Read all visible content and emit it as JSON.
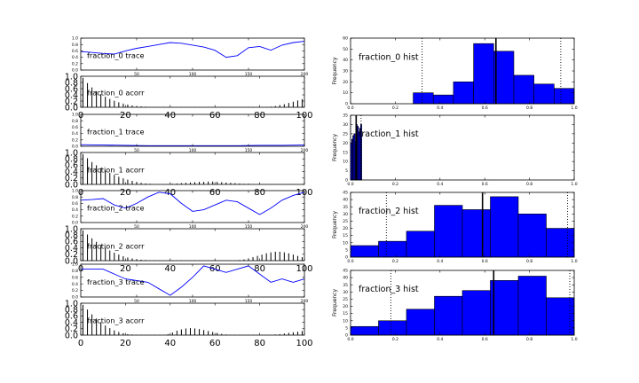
{
  "chart_data": [
    {
      "type": "line",
      "title": "fraction_0 trace",
      "xlim": [
        0,
        200
      ],
      "ylim": [
        0,
        1.0
      ],
      "xticks": [
        "50",
        "100",
        "150",
        "200"
      ],
      "yticks": [
        "1.0",
        "0.8",
        "0.6",
        "0.4",
        "0.2",
        "0.0"
      ],
      "color": "#0000ff",
      "x": [
        0,
        10,
        20,
        30,
        40,
        50,
        60,
        70,
        80,
        90,
        100,
        110,
        120,
        130,
        140,
        150,
        160,
        170,
        180,
        190,
        200
      ],
      "y": [
        0.58,
        0.55,
        0.52,
        0.5,
        0.6,
        0.68,
        0.74,
        0.8,
        0.86,
        0.84,
        0.78,
        0.72,
        0.62,
        0.4,
        0.45,
        0.7,
        0.74,
        0.62,
        0.78,
        0.86,
        0.9
      ]
    },
    {
      "type": "bar",
      "title": "fraction_0 acorr",
      "xlim": [
        0,
        100
      ],
      "ylim": [
        0,
        1.0
      ],
      "xticks": [
        "0",
        "20",
        "40",
        "60",
        "80",
        "100"
      ],
      "yticks": [
        "1.0",
        "0.8",
        "0.6",
        "0.4",
        "0.2",
        "0.0"
      ],
      "color": "#000000",
      "x": [
        1,
        3,
        5,
        7,
        9,
        11,
        13,
        15,
        17,
        19,
        21,
        23,
        25,
        27,
        29,
        31,
        33,
        35,
        37,
        39,
        41,
        43,
        45,
        47,
        49,
        51,
        53,
        55,
        57,
        59,
        61,
        63,
        65,
        67,
        69,
        71,
        73,
        75,
        77,
        79,
        81,
        83,
        85,
        87,
        89,
        91,
        93,
        95,
        97,
        99
      ],
      "values": [
        0.95,
        0.78,
        0.64,
        0.52,
        0.42,
        0.34,
        0.27,
        0.21,
        0.16,
        0.12,
        0.09,
        0.06,
        0.04,
        0.03,
        0.02,
        0.01,
        0.01,
        0.01,
        0.01,
        0.01,
        0.01,
        0.01,
        0.01,
        0.01,
        0.01,
        0.01,
        0.01,
        0.01,
        0.01,
        0.01,
        0.01,
        0.01,
        0.01,
        0.01,
        0.01,
        0.01,
        0.01,
        0.01,
        0.01,
        0.01,
        0.01,
        0.01,
        0.02,
        0.04,
        0.07,
        0.1,
        0.14,
        0.18,
        0.22,
        0.26
      ]
    },
    {
      "type": "line",
      "title": "fraction_1 trace",
      "xlim": [
        0,
        200
      ],
      "ylim": [
        0,
        1.0
      ],
      "xticks": [
        "50",
        "100",
        "150",
        "200"
      ],
      "yticks": [
        "1.0",
        "0.8",
        "0.6",
        "0.4",
        "0.2",
        "0.0"
      ],
      "color": "#0000ff",
      "x": [
        0,
        20,
        40,
        60,
        80,
        100,
        120,
        140,
        160,
        180,
        200
      ],
      "y": [
        0.05,
        0.04,
        0.03,
        0.02,
        0.02,
        0.02,
        0.02,
        0.02,
        0.03,
        0.03,
        0.04
      ]
    },
    {
      "type": "bar",
      "title": "fraction_1 acorr",
      "xlim": [
        0,
        100
      ],
      "ylim": [
        0,
        1.0
      ],
      "xticks": [
        "0",
        "20",
        "40",
        "60",
        "80",
        "100"
      ],
      "yticks": [
        "1.0",
        "0.8",
        "0.6",
        "0.4",
        "0.2",
        "0.0"
      ],
      "color": "#000000",
      "x": [
        1,
        3,
        5,
        7,
        9,
        11,
        13,
        15,
        17,
        19,
        21,
        23,
        25,
        27,
        29,
        31,
        33,
        35,
        37,
        39,
        41,
        43,
        45,
        47,
        49,
        51,
        53,
        55,
        57,
        59,
        61,
        63,
        65,
        67,
        69,
        71,
        73,
        75,
        77,
        79,
        81,
        83,
        85,
        87,
        89,
        91,
        93,
        95,
        97,
        99
      ],
      "values": [
        0.95,
        0.82,
        0.7,
        0.6,
        0.51,
        0.43,
        0.36,
        0.3,
        0.24,
        0.19,
        0.15,
        0.11,
        0.08,
        0.05,
        0.03,
        0.02,
        0.01,
        0.01,
        0.01,
        0.01,
        0.02,
        0.03,
        0.04,
        0.05,
        0.06,
        0.07,
        0.08,
        0.08,
        0.09,
        0.09,
        0.08,
        0.07,
        0.06,
        0.05,
        0.04,
        0.03,
        0.02,
        0.02,
        0.01,
        0.01,
        0.01,
        0.01,
        0.01,
        0.01,
        0.01,
        0.01,
        0.01,
        0.01,
        0.01,
        0.01
      ]
    },
    {
      "type": "line",
      "title": "fraction_2 trace",
      "xlim": [
        0,
        200
      ],
      "ylim": [
        0,
        1.0
      ],
      "xticks": [
        "50",
        "100",
        "150",
        "200"
      ],
      "yticks": [
        "1.0",
        "0.8",
        "0.6",
        "0.4",
        "0.2",
        "0.0"
      ],
      "color": "#0000ff",
      "x": [
        0,
        10,
        20,
        30,
        40,
        50,
        60,
        70,
        80,
        90,
        100,
        110,
        120,
        130,
        140,
        150,
        160,
        170,
        180,
        190,
        200
      ],
      "y": [
        0.7,
        0.72,
        0.75,
        0.55,
        0.45,
        0.6,
        0.8,
        0.95,
        0.9,
        0.6,
        0.35,
        0.4,
        0.55,
        0.7,
        0.65,
        0.45,
        0.25,
        0.45,
        0.7,
        0.85,
        0.95
      ]
    },
    {
      "type": "bar",
      "title": "fraction_2 acorr",
      "xlim": [
        0,
        100
      ],
      "ylim": [
        0,
        1.0
      ],
      "xticks": [
        "0",
        "20",
        "40",
        "60",
        "80",
        "100"
      ],
      "yticks": [
        "1.0",
        "0.8",
        "0.6",
        "0.4",
        "0.2",
        "0.0"
      ],
      "color": "#000000",
      "x": [
        1,
        3,
        5,
        7,
        9,
        11,
        13,
        15,
        17,
        19,
        21,
        23,
        25,
        27,
        29,
        31,
        33,
        35,
        37,
        39,
        41,
        43,
        45,
        47,
        49,
        51,
        53,
        55,
        57,
        59,
        61,
        63,
        65,
        67,
        69,
        71,
        73,
        75,
        77,
        79,
        81,
        83,
        85,
        87,
        89,
        91,
        93,
        95,
        97,
        99
      ],
      "values": [
        0.95,
        0.82,
        0.7,
        0.59,
        0.49,
        0.4,
        0.32,
        0.25,
        0.19,
        0.14,
        0.1,
        0.07,
        0.05,
        0.03,
        0.02,
        0.01,
        0.01,
        0.01,
        0.01,
        0.01,
        0.01,
        0.01,
        0.01,
        0.01,
        0.01,
        0.01,
        0.01,
        0.01,
        0.01,
        0.01,
        0.01,
        0.01,
        0.01,
        0.01,
        0.01,
        0.02,
        0.04,
        0.07,
        0.11,
        0.15,
        0.19,
        0.23,
        0.26,
        0.28,
        0.28,
        0.26,
        0.23,
        0.19,
        0.15,
        0.11
      ]
    },
    {
      "type": "line",
      "title": "fraction_3 trace",
      "xlim": [
        0,
        200
      ],
      "ylim": [
        0,
        1.0
      ],
      "xticks": [
        "50",
        "100",
        "150",
        "200"
      ],
      "yticks": [
        "1.0",
        "0.8",
        "0.6",
        "0.4",
        "0.2",
        "0.0"
      ],
      "color": "#0000ff",
      "x": [
        0,
        10,
        20,
        30,
        40,
        50,
        60,
        70,
        80,
        90,
        100,
        110,
        120,
        130,
        140,
        150,
        160,
        170,
        180,
        190,
        200
      ],
      "y": [
        0.85,
        0.85,
        0.85,
        0.7,
        0.55,
        0.5,
        0.45,
        0.25,
        0.05,
        0.3,
        0.6,
        0.95,
        0.85,
        0.75,
        0.85,
        0.95,
        0.7,
        0.45,
        0.55,
        0.45,
        0.55
      ]
    },
    {
      "type": "bar",
      "title": "fraction_3 acorr",
      "xlim": [
        0,
        100
      ],
      "ylim": [
        0,
        1.0
      ],
      "xticks": [
        "0",
        "20",
        "40",
        "60",
        "80",
        "100"
      ],
      "yticks": [
        "1.0",
        "0.8",
        "0.6",
        "0.4",
        "0.2",
        "0.0"
      ],
      "color": "#000000",
      "x": [
        1,
        3,
        5,
        7,
        9,
        11,
        13,
        15,
        17,
        19,
        21,
        23,
        25,
        27,
        29,
        31,
        33,
        35,
        37,
        39,
        41,
        43,
        45,
        47,
        49,
        51,
        53,
        55,
        57,
        59,
        61,
        63,
        65,
        67,
        69,
        71,
        73,
        75,
        77,
        79,
        81,
        83,
        85,
        87,
        89,
        91,
        93,
        95,
        97,
        99
      ],
      "values": [
        0.95,
        0.8,
        0.65,
        0.52,
        0.4,
        0.3,
        0.22,
        0.15,
        0.1,
        0.06,
        0.03,
        0.02,
        0.01,
        0.01,
        0.01,
        0.01,
        0.01,
        0.01,
        0.01,
        0.03,
        0.08,
        0.14,
        0.18,
        0.21,
        0.22,
        0.21,
        0.19,
        0.16,
        0.13,
        0.1,
        0.07,
        0.04,
        0.02,
        0.01,
        0.01,
        0.01,
        0.01,
        0.01,
        0.01,
        0.01,
        0.01,
        0.01,
        0.01,
        0.02,
        0.03,
        0.05,
        0.07,
        0.09,
        0.11,
        0.13
      ]
    },
    {
      "type": "histogram",
      "title": "fraction_0 hist",
      "ylabel": "Frequency",
      "xlim": [
        0,
        1.0
      ],
      "ylim": [
        0,
        60
      ],
      "xticks": [
        "0.0",
        "0.2",
        "0.4",
        "0.6",
        "0.8",
        "1.0"
      ],
      "yticks": [
        "60",
        "50",
        "40",
        "30",
        "20",
        "10",
        "0"
      ],
      "color": "#0000ff",
      "bin_edges": [
        0.28,
        0.37,
        0.46,
        0.55,
        0.64,
        0.73,
        0.82,
        0.91,
        1.0
      ],
      "counts": [
        10,
        8,
        20,
        55,
        48,
        26,
        18,
        14
      ],
      "mean": 0.65,
      "ci": [
        0.32,
        0.94
      ]
    },
    {
      "type": "histogram",
      "title": "fraction_1 hist",
      "ylabel": "Frequency",
      "xlim": [
        0,
        1.0
      ],
      "ylim": [
        0,
        35
      ],
      "xticks": [
        "0.0",
        "0.2",
        "0.4",
        "0.6",
        "0.8",
        "1.0"
      ],
      "yticks": [
        "35",
        "30",
        "25",
        "20",
        "15",
        "10",
        "5",
        "0"
      ],
      "color": "#0000ff",
      "bin_edges": [
        0.0,
        0.005,
        0.01,
        0.015,
        0.02,
        0.025,
        0.03,
        0.035,
        0.04,
        0.045,
        0.05
      ],
      "counts": [
        20,
        22,
        24,
        25,
        21,
        30,
        29,
        26,
        28,
        30
      ],
      "mean": 0.025,
      "ci": [
        0.0,
        0.047
      ]
    },
    {
      "type": "histogram",
      "title": "fraction_2 hist",
      "ylabel": "Frequency",
      "xlim": [
        0,
        1.0
      ],
      "ylim": [
        0,
        45
      ],
      "xticks": [
        "0.0",
        "0.2",
        "0.4",
        "0.6",
        "0.8",
        "1.0"
      ],
      "yticks": [
        "45",
        "40",
        "35",
        "30",
        "25",
        "20",
        "15",
        "10",
        "5",
        "0"
      ],
      "color": "#0000ff",
      "bin_edges": [
        0.0,
        0.125,
        0.25,
        0.375,
        0.5,
        0.625,
        0.75,
        0.875,
        1.0
      ],
      "counts": [
        8,
        11,
        18,
        36,
        33,
        42,
        30,
        20
      ],
      "mean": 0.59,
      "ci": [
        0.16,
        0.97
      ]
    },
    {
      "type": "histogram",
      "title": "fraction_3 hist",
      "ylabel": "Frequency",
      "xlim": [
        0,
        1.0
      ],
      "ylim": [
        0,
        45
      ],
      "xticks": [
        "0.0",
        "0.2",
        "0.4",
        "0.6",
        "0.8",
        "1.0"
      ],
      "yticks": [
        "45",
        "40",
        "35",
        "30",
        "25",
        "20",
        "15",
        "10",
        "5",
        "0"
      ],
      "color": "#0000ff",
      "bin_edges": [
        0.0,
        0.125,
        0.25,
        0.375,
        0.5,
        0.625,
        0.75,
        0.875,
        1.0
      ],
      "counts": [
        6,
        10,
        18,
        27,
        31,
        38,
        41,
        26
      ],
      "mean": 0.64,
      "ci": [
        0.18,
        0.98
      ]
    }
  ]
}
